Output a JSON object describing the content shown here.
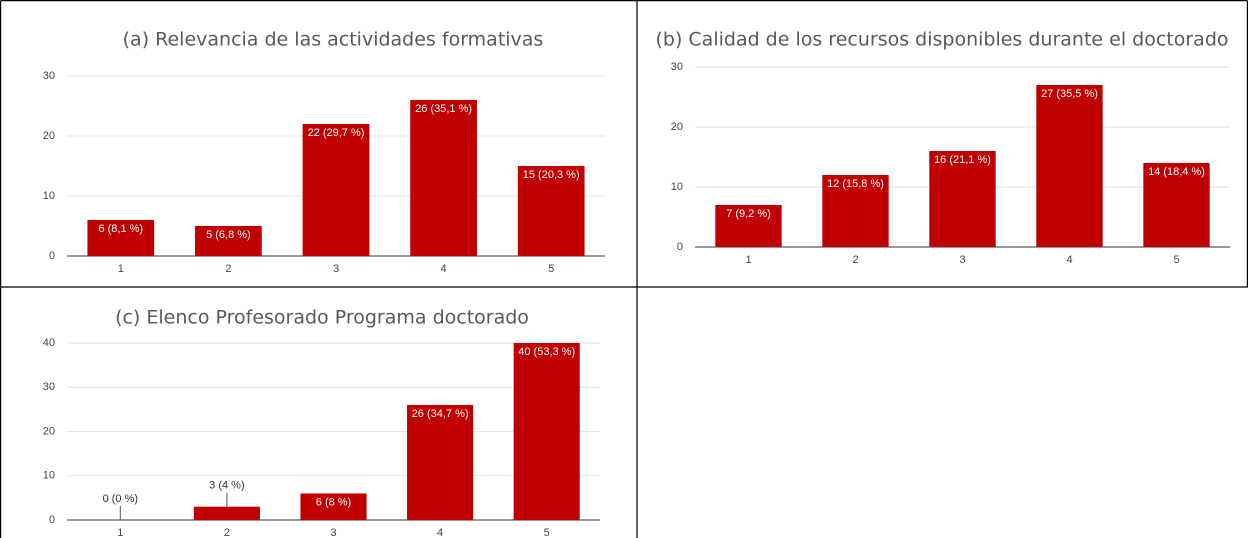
{
  "chart_data": [
    {
      "type": "bar",
      "title": "(a) Relevancia de las actividades formativas",
      "categories": [
        "1",
        "2",
        "3",
        "4",
        "5"
      ],
      "values": [
        6,
        5,
        22,
        26,
        15
      ],
      "value_labels": [
        "6 (8,1 %)",
        "5 (6,8 %)",
        "22 (29,7 %)",
        "26 (35,1 %)",
        "15 (20,3 %)"
      ],
      "color": "#c00000",
      "ylim": [
        0,
        30
      ],
      "yticks": [
        0,
        10,
        20,
        30
      ],
      "grid": true
    },
    {
      "type": "bar",
      "title": "(b) Calidad de los recursos disponibles durante el doctorado",
      "categories": [
        "1",
        "2",
        "3",
        "4",
        "5"
      ],
      "values": [
        7,
        12,
        16,
        27,
        14
      ],
      "value_labels": [
        "7 (9,2 %)",
        "12 (15,8 %)",
        "16 (21,1 %)",
        "27 (35,5 %)",
        "14 (18,4 %)"
      ],
      "color": "#c00000",
      "ylim": [
        0,
        30
      ],
      "yticks": [
        0,
        10,
        20,
        30
      ],
      "grid": true
    },
    {
      "type": "bar",
      "title": "(c) Elenco Profesorado Programa doctorado",
      "categories": [
        "1",
        "2",
        "3",
        "4",
        "5"
      ],
      "values": [
        0,
        3,
        6,
        26,
        40
      ],
      "value_labels": [
        "0 (0 %)",
        "3 (4 %)",
        "6 (8 %)",
        "26 (34,7 %)",
        "40 (53,3 %)"
      ],
      "color": "#c00000",
      "ylim": [
        0,
        40
      ],
      "yticks": [
        0,
        10,
        20,
        30,
        40
      ],
      "grid": true
    }
  ]
}
